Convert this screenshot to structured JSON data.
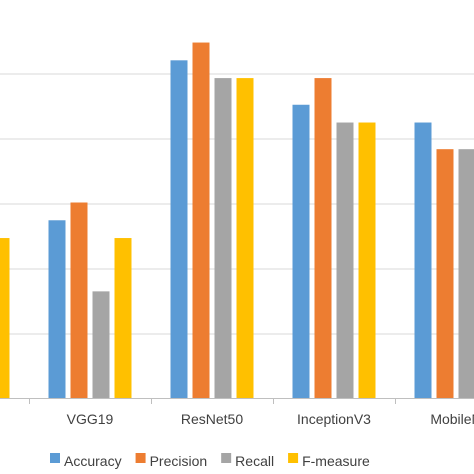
{
  "chart_data": {
    "type": "bar",
    "categories": [
      "",
      "VGG19",
      "ResNet50",
      "InceptionV3",
      "MobileN"
    ],
    "series": [
      {
        "name": "Accuracy",
        "color": "#5B9BD5",
        "values": [
          null,
          0.82,
          0.91,
          0.885,
          0.875
        ]
      },
      {
        "name": "Precision",
        "color": "#ED7D31",
        "values": [
          null,
          0.83,
          0.92,
          0.9,
          0.86
        ]
      },
      {
        "name": "Recall",
        "color": "#A5A5A5",
        "values": [
          null,
          0.78,
          0.9,
          0.875,
          0.86
        ]
      },
      {
        "name": "F-measure",
        "color": "#FFC000",
        "values": [
          0.81,
          0.81,
          0.9,
          0.875,
          null
        ]
      }
    ],
    "ylim": [
      0.72,
      0.94
    ],
    "grid": true,
    "legend": "bottom"
  }
}
